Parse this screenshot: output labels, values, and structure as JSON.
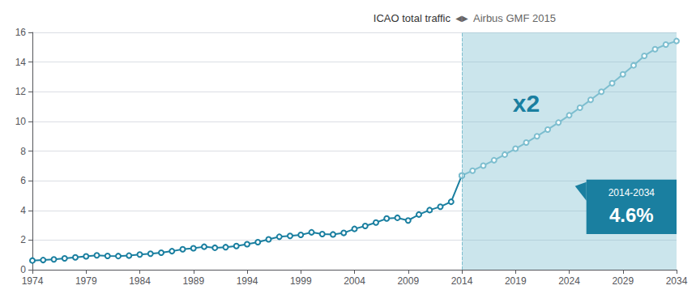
{
  "chart_data": {
    "type": "line",
    "title": "ICAO total traffic",
    "subtitle": "Airbus GMF 2015",
    "annotations": [
      "◀▶",
      "x2",
      "2014-2034",
      "4.6%"
    ],
    "series": [
      {
        "x": [
          1974,
          1975,
          1976,
          1977,
          1978,
          1979,
          1980,
          1981,
          1982,
          1983,
          1984,
          1985,
          1986,
          1987,
          1988,
          1989,
          1990,
          1991,
          1992,
          1993,
          1994,
          1995,
          1996,
          1997,
          1998,
          1999,
          2000,
          2001,
          2002,
          2003,
          2004,
          2005,
          2006,
          2007,
          2008,
          2009,
          2010,
          2011,
          2012,
          2013,
          2014
        ],
        "values": [
          0.62,
          0.65,
          0.7,
          0.76,
          0.83,
          0.9,
          0.97,
          0.93,
          0.92,
          0.95,
          1.02,
          1.08,
          1.15,
          1.25,
          1.38,
          1.45,
          1.55,
          1.48,
          1.52,
          1.6,
          1.72,
          1.86,
          2.05,
          2.22,
          2.28,
          2.35,
          2.52,
          2.4,
          2.38,
          2.48,
          2.75,
          2.95,
          3.18,
          3.45,
          3.5,
          3.32,
          3.72,
          4.02,
          4.25,
          4.58,
          6.35
        ],
        "color": "#1a7fa0",
        "marker": "circle"
      },
      {
        "x": [
          2014,
          2015,
          2016,
          2017,
          2018,
          2019,
          2020,
          2021,
          2022,
          2023,
          2024,
          2025,
          2026,
          2027,
          2028,
          2029,
          2030,
          2031,
          2032,
          2033,
          2034
        ],
        "values": [
          6.35,
          6.68,
          7.02,
          7.38,
          7.76,
          8.16,
          8.57,
          9.0,
          9.45,
          9.92,
          10.41,
          10.92,
          11.45,
          12.0,
          12.57,
          13.17,
          13.78,
          14.42,
          14.87,
          15.18,
          15.42
        ],
        "color": "#7dbecf",
        "marker": "circle"
      }
    ],
    "xlim": [
      1974,
      2034
    ],
    "xticks": [
      1974,
      1979,
      1984,
      1989,
      1994,
      1999,
      2004,
      2009,
      2014,
      2019,
      2024,
      2029,
      2034
    ],
    "ylim": [
      0,
      16
    ],
    "yticks": [
      0,
      2,
      4,
      6,
      8,
      10,
      12,
      14,
      16
    ],
    "grid": true
  }
}
